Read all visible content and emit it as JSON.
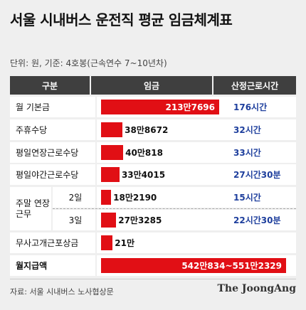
{
  "title": "서울 시내버스 운전직 평균 임금체계표",
  "subtitle": "단위: 원, 기준: 4호봉(근속연수 7~10년차)",
  "header": {
    "col1": "구분",
    "col2": "임금",
    "col3": "산정근로시간"
  },
  "chart_data": {
    "type": "bar",
    "max_value": 5512329,
    "rows": [
      {
        "label": "월 기본금",
        "value": 2137696,
        "value_label": "213만7696",
        "hours": "176시간"
      },
      {
        "label": "주휴수당",
        "value": 388672,
        "value_label": "38만8672",
        "hours": "32시간"
      },
      {
        "label": "평일연장근로수당",
        "value": 400818,
        "value_label": "40만818",
        "hours": "33시간"
      },
      {
        "label": "평일야간근로수당",
        "value": 334015,
        "value_label": "33만4015",
        "hours": "27시간30분"
      },
      {
        "group": "주말 연장근무",
        "label": "2일",
        "value": 182190,
        "value_label": "18만2190",
        "hours": "15시간"
      },
      {
        "group": "주말 연장근무",
        "label": "3일",
        "value": 273285,
        "value_label": "27만3285",
        "hours": "22시간30분"
      },
      {
        "label": "무사고개근포상금",
        "value": 210000,
        "value_label": "21만",
        "hours": ""
      },
      {
        "label": "월지급액",
        "value_min": 5420834,
        "value_max": 5512329,
        "value_label": "542만834~551만2329",
        "hours": ""
      }
    ]
  },
  "footer": {
    "source": "자료: 서울 시내버스 노사협상문",
    "brand": "The JoongAng"
  }
}
